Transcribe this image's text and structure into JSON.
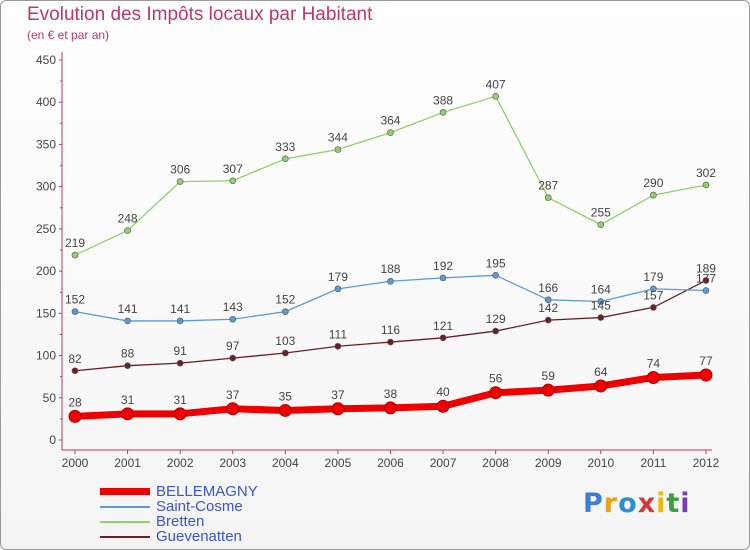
{
  "header": {
    "title": "Evolution des Impôts locaux par Habitant",
    "subtitle": "(en € et par an)"
  },
  "logo": {
    "text": "Proxiti",
    "colors": [
      "#3a7fd0",
      "#e8a21c",
      "#2f8fd0",
      "#d13a3a",
      "#f0b90a",
      "#3aa13a",
      "#7a3ab0"
    ]
  },
  "chart_data": {
    "type": "line",
    "categories": [
      "2000",
      "2001",
      "2002",
      "2003",
      "2004",
      "2005",
      "2006",
      "2007",
      "2008",
      "2009",
      "2010",
      "2011",
      "2012"
    ],
    "ylim": [
      0,
      450
    ],
    "yticks": [
      0,
      50,
      100,
      150,
      200,
      250,
      300,
      350,
      400,
      450
    ],
    "grid": false,
    "legend_position": "bottom-left",
    "series": [
      {
        "name": "BELLEMAGNY",
        "color": "#ee0000",
        "values": [
          28,
          31,
          31,
          37,
          35,
          37,
          38,
          40,
          56,
          59,
          64,
          74,
          77
        ]
      },
      {
        "name": "Saint-Cosme",
        "color": "#5b9bd5",
        "values": [
          152,
          141,
          141,
          143,
          152,
          179,
          188,
          192,
          195,
          166,
          164,
          179,
          177
        ]
      },
      {
        "name": "Bretten",
        "color": "#8fd16a",
        "values": [
          219,
          248,
          306,
          307,
          333,
          344,
          364,
          388,
          407,
          287,
          255,
          290,
          302
        ]
      },
      {
        "name": "Guevenatten",
        "color": "#6b1f24",
        "values": [
          82,
          88,
          91,
          97,
          103,
          111,
          116,
          121,
          129,
          142,
          145,
          157,
          189
        ]
      }
    ]
  }
}
